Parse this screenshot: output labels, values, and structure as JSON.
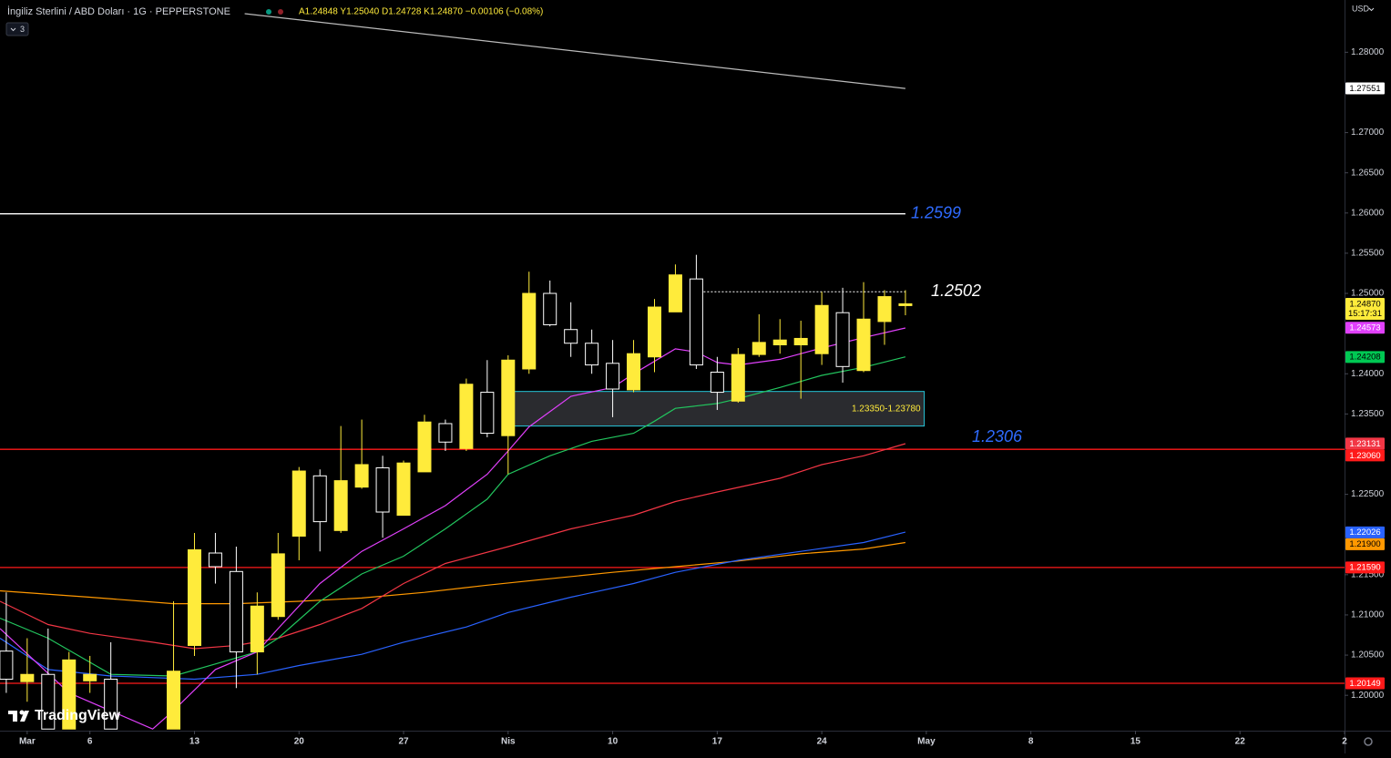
{
  "header": {
    "symbol": "İngiliz Sterlini / ABD Doları · 1G · PEPPERSTONE",
    "ohlc": "A1.24848 Y1.25040 D1.24728 K1.24870 −0.00106 (−0.08%)",
    "indicators_toggle": "3",
    "currency": "USD",
    "logo": "TradingView"
  },
  "chart_data": {
    "type": "candlestick",
    "xlim": [
      -1.3,
      63
    ],
    "ylim": [
      1.1956,
      1.2865
    ],
    "xticks": [
      {
        "value": 0,
        "label": "Mar"
      },
      {
        "value": 3,
        "label": "6"
      },
      {
        "value": 8,
        "label": "13"
      },
      {
        "value": 13,
        "label": "20"
      },
      {
        "value": 18,
        "label": "27"
      },
      {
        "value": 23,
        "label": "Nis"
      },
      {
        "value": 28,
        "label": "10"
      },
      {
        "value": 33,
        "label": "17"
      },
      {
        "value": 38,
        "label": "24"
      },
      {
        "value": 43,
        "label": "May"
      },
      {
        "value": 48,
        "label": "8"
      },
      {
        "value": 53,
        "label": "15"
      },
      {
        "value": 58,
        "label": "22"
      },
      {
        "value": 63,
        "label": "2"
      }
    ],
    "yticks": [
      {
        "value": 1.28,
        "label": "1.28000"
      },
      {
        "value": 1.27,
        "label": "1.27000"
      },
      {
        "value": 1.265,
        "label": "1.26500"
      },
      {
        "value": 1.26,
        "label": "1.26000"
      },
      {
        "value": 1.255,
        "label": "1.25500"
      },
      {
        "value": 1.25,
        "label": "1.25000"
      },
      {
        "value": 1.24,
        "label": "1.24000"
      },
      {
        "value": 1.235,
        "label": "1.23500"
      },
      {
        "value": 1.225,
        "label": "1.22500"
      },
      {
        "value": 1.215,
        "label": "1.21500"
      },
      {
        "value": 1.21,
        "label": "1.21000"
      },
      {
        "value": 1.205,
        "label": "1.20500"
      },
      {
        "value": 1.2,
        "label": "1.20000"
      }
    ],
    "grid": false,
    "up_color": "#ffeb3b",
    "down_color": "#000000",
    "down_border": "#ffffff",
    "candles": {
      "x": [
        -1,
        0,
        1,
        2,
        3,
        4,
        7,
        8,
        9,
        10,
        11,
        12,
        13,
        14,
        15,
        16,
        17,
        18,
        19,
        20,
        21,
        22,
        23,
        24,
        25,
        26,
        27,
        28,
        29,
        30,
        31,
        32,
        33,
        34,
        35,
        36,
        37,
        38,
        39,
        40,
        41,
        42
      ],
      "open": [
        1.2055,
        1.2017,
        1.2026,
        1.1958,
        1.2018,
        1.202,
        1.1958,
        1.2062,
        1.2177,
        1.2154,
        1.2054,
        1.2098,
        1.2198,
        1.2273,
        1.2205,
        1.2259,
        1.2283,
        1.2224,
        1.2278,
        1.2338,
        1.2307,
        1.2377,
        1.2323,
        1.2406,
        1.25,
        1.2455,
        1.2438,
        1.2413,
        1.238,
        1.2421,
        1.2477,
        1.2518,
        1.2402,
        1.2366,
        1.2424,
        1.2436,
        1.2436,
        1.2425,
        1.2476,
        1.2404,
        1.2465,
        1.24848
      ],
      "high": [
        1.2128,
        1.2071,
        1.2083,
        1.2054,
        1.2049,
        1.2066,
        1.2117,
        1.2202,
        1.2202,
        1.2185,
        1.2128,
        1.2202,
        1.2284,
        1.2281,
        1.2335,
        1.2343,
        1.2298,
        1.2292,
        1.2349,
        1.2343,
        1.2394,
        1.2417,
        1.2423,
        1.2527,
        1.2516,
        1.2489,
        1.2455,
        1.2442,
        1.2442,
        1.2493,
        1.2536,
        1.2548,
        1.2421,
        1.2432,
        1.2474,
        1.2468,
        1.2466,
        1.2502,
        1.2507,
        1.2514,
        1.2504,
        1.2504
      ],
      "low": [
        1.2003,
        1.1992,
        1.1958,
        1.1958,
        1.2003,
        1.1958,
        1.1958,
        1.2049,
        1.2139,
        1.2009,
        1.2026,
        1.2094,
        1.2168,
        1.2179,
        1.2202,
        1.2257,
        1.2196,
        1.2224,
        1.2278,
        1.2304,
        1.2304,
        1.2321,
        1.2275,
        1.24,
        1.2459,
        1.2421,
        1.24,
        1.2346,
        1.2377,
        1.2402,
        1.2477,
        1.2406,
        1.2355,
        1.2364,
        1.2421,
        1.2425,
        1.2369,
        1.2411,
        1.2389,
        1.2402,
        1.2436,
        1.24728
      ],
      "close": [
        1.202,
        1.2026,
        1.1958,
        1.2044,
        1.2026,
        1.1958,
        1.203,
        1.2181,
        1.216,
        1.2054,
        1.2111,
        1.2176,
        1.2279,
        1.2216,
        1.2267,
        1.2287,
        1.2228,
        1.2289,
        1.234,
        1.2315,
        1.2387,
        1.2326,
        1.2417,
        1.25,
        1.2461,
        1.2438,
        1.2411,
        1.2381,
        1.2425,
        1.2483,
        1.2523,
        1.2411,
        1.2377,
        1.2424,
        1.2439,
        1.2442,
        1.2444,
        1.2485,
        1.2409,
        1.2468,
        1.2496,
        1.2487
      ]
    },
    "lines": [
      {
        "color": "#ff9800",
        "x": [
          -1.3,
          3,
          7,
          10,
          13,
          16,
          19,
          22,
          25,
          28,
          31,
          34,
          37,
          40,
          42
        ],
        "values": [
          1.213,
          1.2122,
          1.2114,
          1.2114,
          1.2117,
          1.2121,
          1.2128,
          1.2137,
          1.2145,
          1.2153,
          1.216,
          1.2167,
          1.2176,
          1.2182,
          1.219
        ]
      },
      {
        "color": "#2962ff",
        "x": [
          -1.3,
          1,
          4,
          8,
          11,
          13,
          16,
          18,
          21,
          23,
          26,
          29,
          31,
          34,
          37,
          40,
          42
        ],
        "values": [
          1.2071,
          1.2032,
          1.2024,
          1.202,
          1.2026,
          1.2037,
          1.2051,
          1.2066,
          1.2085,
          1.2103,
          1.2122,
          1.2139,
          1.2153,
          1.2168,
          1.2179,
          1.219,
          1.2203
        ]
      },
      {
        "color": "#f23645",
        "x": [
          -1.3,
          1,
          3,
          6,
          8,
          10,
          12,
          14,
          16,
          18,
          20,
          23,
          26,
          29,
          31,
          33,
          36,
          38,
          40,
          42
        ],
        "values": [
          1.2117,
          1.2088,
          1.2077,
          1.2066,
          1.2058,
          1.2062,
          1.2071,
          1.2088,
          1.2108,
          1.2139,
          1.2164,
          1.2185,
          1.2207,
          1.2224,
          1.2241,
          1.2253,
          1.227,
          1.2287,
          1.2298,
          1.2313
        ]
      },
      {
        "color": "#22c55e",
        "x": [
          -1.3,
          1,
          4,
          7,
          9,
          11,
          12,
          14,
          16,
          18,
          20,
          22,
          23,
          25,
          27,
          29,
          30,
          31,
          33,
          34,
          36,
          38,
          40,
          42
        ],
        "values": [
          1.2096,
          1.2071,
          1.2026,
          1.2024,
          1.2039,
          1.2054,
          1.2071,
          1.2117,
          1.2151,
          1.2173,
          1.2207,
          1.2244,
          1.2275,
          1.2298,
          1.2316,
          1.2326,
          1.2341,
          1.2357,
          1.2363,
          1.2369,
          1.2383,
          1.2398,
          1.2408,
          1.2421
        ]
      },
      {
        "color": "#e040fb",
        "x": [
          -1.3,
          2,
          6,
          7,
          9,
          11,
          12,
          14,
          16,
          18,
          20,
          22,
          23,
          24,
          26,
          28,
          29,
          31,
          32,
          33,
          34,
          36,
          38,
          40,
          42
        ],
        "values": [
          1.2083,
          1.2003,
          1.1958,
          1.1981,
          1.2032,
          1.2054,
          1.2083,
          1.2139,
          1.2179,
          1.2207,
          1.2236,
          1.2275,
          1.2304,
          1.2334,
          1.2372,
          1.2383,
          1.24,
          1.2431,
          1.2427,
          1.2414,
          1.2411,
          1.2418,
          1.2432,
          1.2445,
          1.2457
        ]
      },
      {
        "color": "#bbbbbb",
        "x": [
          10.4,
          42
        ],
        "values": [
          1.2848,
          1.2755
        ]
      }
    ],
    "hlines": [
      {
        "value": 1.2599,
        "color": "#ffffff",
        "style": "solid",
        "from": -1.3,
        "to": 42,
        "label": "1.2599",
        "label_color": "#2f6bff"
      },
      {
        "value": 1.2502,
        "color": "#ffffff",
        "style": "dotted",
        "from": 32,
        "to": 42,
        "label": "1.2502",
        "label_color": "#ffffff"
      },
      {
        "value": 1.2306,
        "color": "#ff1a1a",
        "style": "solid",
        "label": "1.2306",
        "label_color": "#2f6bff"
      },
      {
        "value": 1.2159,
        "color": "#ff1a1a",
        "style": "solid"
      },
      {
        "value": 1.20149,
        "color": "#ff1a1a",
        "style": "solid"
      }
    ],
    "zone": {
      "from": 23,
      "to": 42.9,
      "low": 1.2335,
      "high": 1.2378,
      "label": "1.23350-1.23780",
      "color": "#26c6da"
    },
    "countdown": "15:17:31",
    "price_tags": [
      {
        "value": 1.27551,
        "label": "1.27551",
        "color": "#ffffff",
        "text_color": "#000000"
      },
      {
        "value": 1.2487,
        "label": "1.24870",
        "color": "#ffeb3b",
        "text_color": "#000000"
      },
      {
        "value": 1.24573,
        "label": "1.24573",
        "color": "#e040fb",
        "text_color": "#ffffff"
      },
      {
        "value": 1.24208,
        "label": "1.24208",
        "color": "#00c853",
        "text_color": "#000000"
      },
      {
        "value": 1.23131,
        "label": "1.23131",
        "color": "#f23645",
        "text_color": "#ffffff"
      },
      {
        "value": 1.2306,
        "label": "1.23060",
        "color": "#ff1a1a",
        "text_color": "#ffffff"
      },
      {
        "value": 1.22026,
        "label": "1.22026",
        "color": "#2962ff",
        "text_color": "#ffffff"
      },
      {
        "value": 1.219,
        "label": "1.21900",
        "color": "#ff9800",
        "text_color": "#000000"
      },
      {
        "value": 1.2159,
        "label": "1.21590",
        "color": "#ff1a1a",
        "text_color": "#ffffff"
      },
      {
        "value": 1.20149,
        "label": "1.20149",
        "color": "#ff1a1a",
        "text_color": "#ffffff"
      }
    ]
  }
}
